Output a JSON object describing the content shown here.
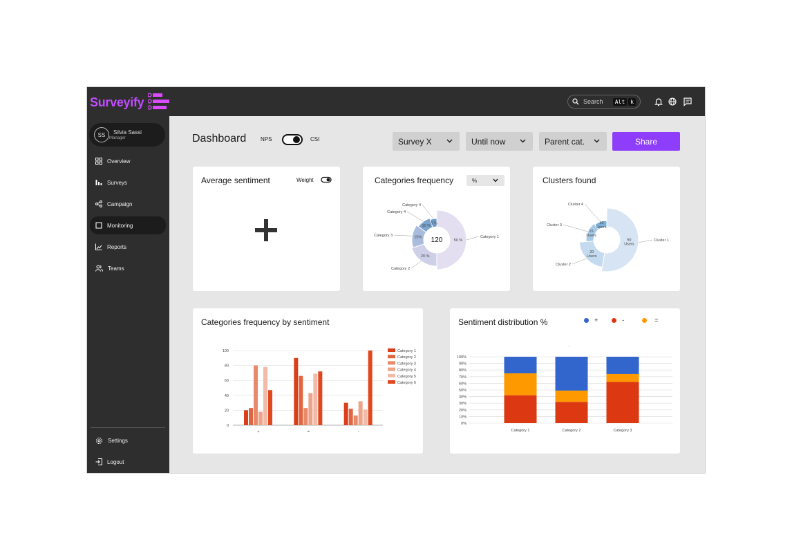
{
  "app": {
    "name": "Surveyify"
  },
  "topbar": {
    "search_placeholder": "Search",
    "kbd_alt": "Alt",
    "kbd_k": "k"
  },
  "user": {
    "initials": "SS",
    "name": "Silvia Sassi",
    "role": "Manager"
  },
  "sidebar": {
    "items": [
      {
        "label": "Overview",
        "icon": "grid-icon"
      },
      {
        "label": "Surveys",
        "icon": "bars-icon"
      },
      {
        "label": "Campaign",
        "icon": "share-icon"
      },
      {
        "label": "Monitoring",
        "icon": "monitor-icon",
        "active": true
      },
      {
        "label": "Reports",
        "icon": "chart-line-icon"
      },
      {
        "label": "Teams",
        "icon": "users-icon"
      }
    ],
    "bottom": [
      {
        "label": "Settings",
        "icon": "gear-icon"
      },
      {
        "label": "Logout",
        "icon": "logout-icon"
      }
    ]
  },
  "header": {
    "title": "Dashboard",
    "toggle_left": "NPS",
    "toggle_right": "CSI",
    "filters": [
      "Survey X",
      "Until now",
      "Parent cat."
    ],
    "share_label": "Share"
  },
  "cards": {
    "avg_sentiment": {
      "title": "Average sentiment",
      "weight_label": "Weight",
      "add_symbol": "+"
    },
    "cat_freq": {
      "title": "Categories frequency",
      "select_value": "%",
      "center_value": "120"
    },
    "clusters": {
      "title": "Clusters found"
    },
    "cat_freq_sentiment": {
      "title": "Categories frequency by sentiment"
    },
    "sent_dist": {
      "title": "Sentiment distribution %",
      "legend": [
        "+",
        "-",
        "="
      ],
      "stray_label": "."
    }
  },
  "colors": {
    "accent": "#8e3dfa",
    "brand": "#c24bff",
    "positive": "#3366cc",
    "negative": "#dc3912",
    "neutral": "#ff9900"
  },
  "chart_data": [
    {
      "type": "pie",
      "name": "categories-frequency",
      "labels": [
        "Category 1",
        "Category 2",
        "Category 3",
        "Category 4",
        "Category 4"
      ],
      "values": [
        50,
        20,
        15,
        10,
        5
      ],
      "value_labels": [
        "50 %",
        "20 %",
        "15%",
        "10 %",
        "5 %"
      ],
      "center": "120"
    },
    {
      "type": "pie",
      "name": "clusters-found",
      "labels": [
        "Cluster 1",
        "Cluster 2",
        "Cluster 3",
        "Cluster 4"
      ],
      "values": [
        50,
        20,
        15,
        10
      ],
      "value_labels": [
        "50\nUsers",
        "20\nUsers",
        "15\nUsers",
        "10\nUsers"
      ]
    },
    {
      "type": "bar",
      "name": "categories-frequency-by-sentiment",
      "categories": [
        "+",
        "=",
        "-"
      ],
      "series": [
        {
          "name": "Category 1",
          "values": [
            20,
            90,
            30
          ]
        },
        {
          "name": "Category 2",
          "values": [
            23,
            66,
            22
          ]
        },
        {
          "name": "Category 3",
          "values": [
            80,
            23,
            13
          ]
        },
        {
          "name": "Category 4",
          "values": [
            18,
            43,
            32
          ]
        },
        {
          "name": "Category 5",
          "values": [
            78,
            69,
            21
          ]
        },
        {
          "name": "Category 6",
          "values": [
            47,
            72,
            100
          ]
        }
      ],
      "ylim": [
        0,
        100
      ],
      "yticks": [
        0,
        20,
        40,
        60,
        80,
        100
      ]
    },
    {
      "type": "bar",
      "name": "sentiment-distribution",
      "stacked": true,
      "categories": [
        "Category 1",
        "Category 2",
        "Category 3"
      ],
      "series": [
        {
          "name": "-",
          "values": [
            42,
            32,
            62
          ]
        },
        {
          "name": "=",
          "values": [
            33,
            17,
            12
          ]
        },
        {
          "name": "+",
          "values": [
            25,
            51,
            26
          ]
        }
      ],
      "ylim": [
        0,
        100
      ],
      "yticks": [
        "0%",
        "10%",
        "20%",
        "30%",
        "40%",
        "50%",
        "60%",
        "70%",
        "80%",
        "90%",
        "100%"
      ]
    }
  ]
}
